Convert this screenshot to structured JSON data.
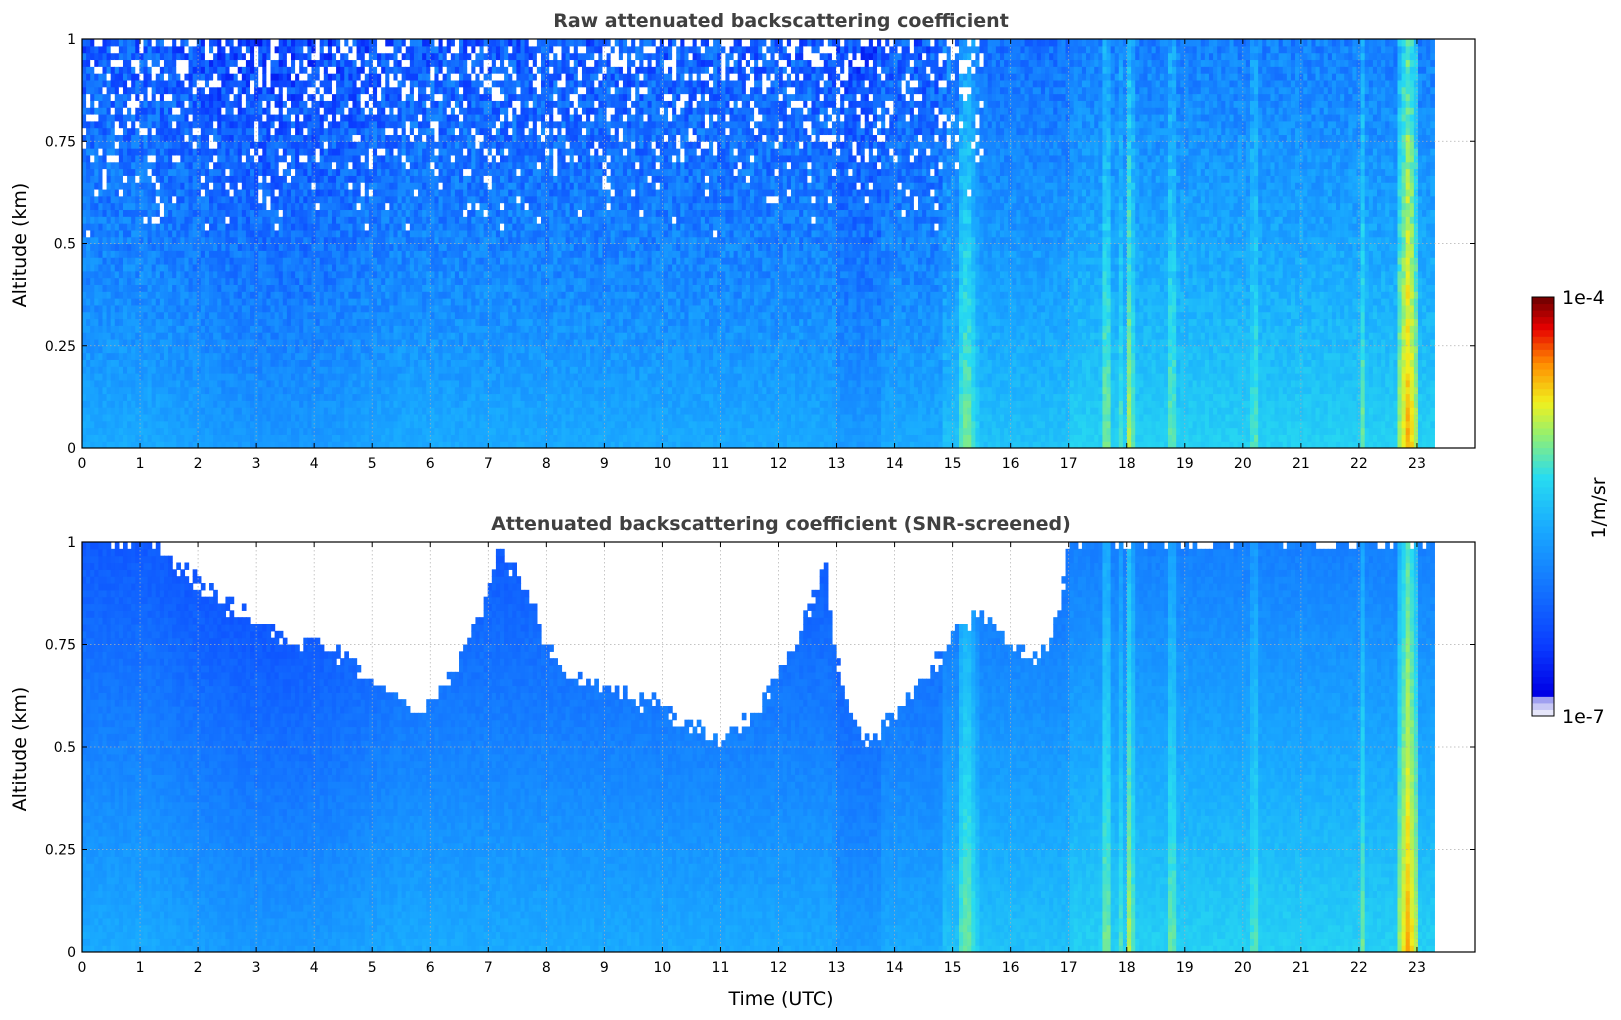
{
  "chart_data": [
    {
      "type": "heatmap",
      "title": "Raw attenuated backscattering coefficient",
      "xlabel": "",
      "ylabel": "Altitude (km)",
      "xlim": [
        0,
        24
      ],
      "ylim": [
        0,
        1
      ],
      "x_ticks": [
        "0",
        "1",
        "2",
        "3",
        "4",
        "5",
        "6",
        "7",
        "8",
        "9",
        "10",
        "11",
        "12",
        "13",
        "14",
        "15",
        "16",
        "17",
        "18",
        "19",
        "20",
        "21",
        "22",
        "23"
      ],
      "y_ticks": [
        "0",
        "0.25",
        "0.5",
        "0.75",
        "1"
      ],
      "grid": true,
      "data_end_hour": 23.3,
      "screened": false,
      "color_scale": "log",
      "colorbar_range": [
        1e-07,
        0.0001
      ],
      "colormap": [
        "#ffffff",
        "#0000e6",
        "#0a64ff",
        "#19a0ff",
        "#32dcf0",
        "#a0f064",
        "#f0f01e",
        "#ff8c00",
        "#e60000",
        "#780000"
      ],
      "enhanced_layers_utc": [
        15.2,
        15.35,
        17.65,
        17.88,
        18.05,
        18.78,
        20.2,
        22.05,
        22.85
      ]
    },
    {
      "type": "heatmap",
      "title": "Attenuated backscattering coefficient (SNR-screened)",
      "xlabel": "Time (UTC)",
      "ylabel": "Altitude (km)",
      "xlim": [
        0,
        24
      ],
      "ylim": [
        0,
        1
      ],
      "x_ticks": [
        "0",
        "1",
        "2",
        "3",
        "4",
        "5",
        "6",
        "7",
        "8",
        "9",
        "10",
        "11",
        "12",
        "13",
        "14",
        "15",
        "16",
        "17",
        "18",
        "19",
        "20",
        "21",
        "22",
        "23"
      ],
      "y_ticks": [
        "0",
        "0.25",
        "0.5",
        "0.75",
        "1"
      ],
      "grid": true,
      "data_end_hour": 23.3,
      "screened": true,
      "color_scale": "log",
      "colorbar_range": [
        1e-07,
        0.0001
      ],
      "screened_top_km": [
        [
          0,
          1.0
        ],
        [
          1.2,
          1.0
        ],
        [
          1.5,
          0.95
        ],
        [
          2.0,
          0.9
        ],
        [
          2.5,
          0.85
        ],
        [
          3.0,
          0.8
        ],
        [
          3.5,
          0.76
        ],
        [
          4.0,
          0.76
        ],
        [
          4.5,
          0.72
        ],
        [
          5.0,
          0.66
        ],
        [
          5.5,
          0.62
        ],
        [
          5.8,
          0.56
        ],
        [
          6.0,
          0.6
        ],
        [
          6.4,
          0.68
        ],
        [
          6.9,
          0.85
        ],
        [
          7.2,
          0.98
        ],
        [
          7.6,
          0.9
        ],
        [
          8.0,
          0.75
        ],
        [
          8.5,
          0.66
        ],
        [
          9.0,
          0.65
        ],
        [
          9.5,
          0.62
        ],
        [
          10.0,
          0.6
        ],
        [
          10.5,
          0.55
        ],
        [
          11.0,
          0.52
        ],
        [
          11.3,
          0.55
        ],
        [
          11.7,
          0.6
        ],
        [
          12.0,
          0.68
        ],
        [
          12.5,
          0.82
        ],
        [
          12.8,
          0.95
        ],
        [
          13.0,
          0.7
        ],
        [
          13.2,
          0.6
        ],
        [
          13.5,
          0.5
        ],
        [
          13.8,
          0.55
        ],
        [
          14.2,
          0.62
        ],
        [
          14.6,
          0.68
        ],
        [
          15.0,
          0.78
        ],
        [
          15.5,
          0.82
        ],
        [
          16.0,
          0.75
        ],
        [
          16.5,
          0.72
        ],
        [
          16.8,
          0.8
        ],
        [
          17.0,
          1.0
        ],
        [
          23.3,
          1.0
        ]
      ]
    }
  ],
  "colorbar": {
    "label": "1/m/sr",
    "max_label": "1e-4",
    "min_label": "1e-7"
  }
}
